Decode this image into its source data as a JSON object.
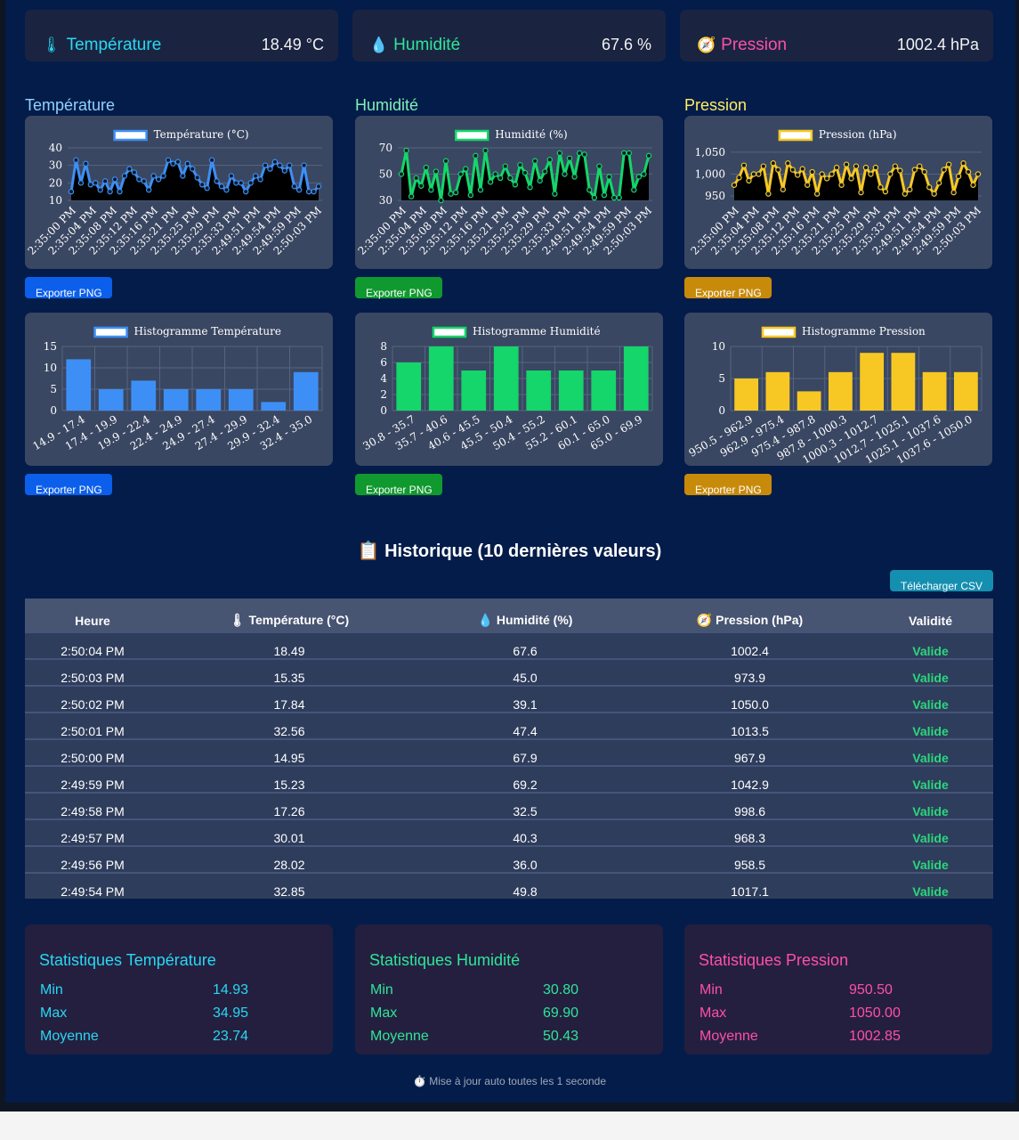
{
  "gauges": [
    {
      "icon": "🌡",
      "label": "Température",
      "value": "18.49 °C",
      "color": "#29d8f2"
    },
    {
      "icon": "💧",
      "label": "Humidité",
      "value": "67.6 %",
      "color": "#2fe59a"
    },
    {
      "icon": "🧭",
      "label": "Pression",
      "value": "1002.4 hPa",
      "color": "#ff4fa8"
    }
  ],
  "sections": {
    "temperature": {
      "title": "Température",
      "color": "#8fd2ff"
    },
    "humidity": {
      "title": "Humidité",
      "color": "#7ef2b7"
    },
    "pressure": {
      "title": "Pression",
      "color": "#ffee66"
    }
  },
  "export_label": "Exporter PNG",
  "colors": {
    "temp": "#3d8ff5",
    "hum": "#14d66a",
    "pres": "#f7c824",
    "btn_temp": "#0b5fea",
    "btn_hum": "#10992f",
    "btn_pres": "#c88a0a"
  },
  "chart_data": [
    {
      "type": "line",
      "legend": "Température (°C)",
      "x_labels": [
        "2:35:00 PM",
        "2:35:04 PM",
        "2:35:08 PM",
        "2:35:12 PM",
        "2:35:16 PM",
        "2:35:21 PM",
        "2:35:25 PM",
        "2:35:29 PM",
        "2:35:33 PM",
        "2:49:51 PM",
        "2:49:54 PM",
        "2:49:59 PM",
        "2:50:03 PM"
      ],
      "y_ticks": [
        10,
        20,
        30,
        40
      ],
      "ylim": [
        10,
        40
      ],
      "values": [
        15,
        33,
        20,
        31,
        19,
        20,
        16,
        21,
        15,
        22,
        15,
        24,
        28,
        26,
        22,
        21,
        16,
        24,
        22,
        24,
        33,
        31,
        32,
        24,
        31,
        28,
        23,
        19,
        17,
        33,
        21,
        18,
        16,
        24,
        20,
        20,
        15,
        20,
        24,
        22,
        30,
        28,
        32,
        30,
        27,
        30,
        18,
        16,
        30,
        15,
        15,
        18
      ]
    },
    {
      "type": "line",
      "legend": "Humidité (%)",
      "x_labels": [
        "2:35:00 PM",
        "2:35:04 PM",
        "2:35:08 PM",
        "2:35:12 PM",
        "2:35:16 PM",
        "2:35:21 PM",
        "2:35:25 PM",
        "2:35:29 PM",
        "2:35:33 PM",
        "2:49:51 PM",
        "2:49:54 PM",
        "2:49:59 PM",
        "2:50:03 PM"
      ],
      "y_ticks": [
        30,
        50,
        70
      ],
      "ylim": [
        30,
        70
      ],
      "values": [
        50,
        68,
        33,
        47,
        41,
        55,
        38,
        52,
        30,
        60,
        35,
        36,
        50,
        54,
        34,
        64,
        38,
        68,
        44,
        50,
        47,
        56,
        47,
        42,
        57,
        51,
        40,
        60,
        45,
        52,
        61,
        35,
        66,
        50,
        62,
        48,
        66,
        65,
        38,
        32,
        56,
        34,
        48,
        32,
        32,
        66,
        66,
        38,
        48,
        50,
        64
      ]
    },
    {
      "type": "line",
      "legend": "Pression (hPa)",
      "x_labels": [
        "2:35:00 PM",
        "2:35:04 PM",
        "2:35:08 PM",
        "2:35:12 PM",
        "2:35:16 PM",
        "2:35:21 PM",
        "2:35:25 PM",
        "2:35:29 PM",
        "2:35:33 PM",
        "2:49:51 PM",
        "2:49:54 PM",
        "2:49:59 PM",
        "2:50:03 PM"
      ],
      "y_ticks": [
        950,
        1000,
        1050
      ],
      "ylim": [
        940,
        1060
      ],
      "values": [
        975,
        992,
        1020,
        985,
        1000,
        1000,
        1018,
        955,
        1025,
        1010,
        965,
        1025,
        1010,
        998,
        1012,
        975,
        1005,
        955,
        1000,
        990,
        1000,
        1015,
        975,
        1022,
        990,
        1018,
        958,
        1015,
        1000,
        1015,
        970,
        960,
        1000,
        1018,
        1008,
        955,
        965,
        1010,
        1018,
        1005,
        970,
        955,
        980,
        1010,
        1022,
        958,
        995,
        1025,
        1005,
        975,
        1000
      ]
    },
    {
      "type": "bar",
      "legend": "Histogramme Température",
      "categories": [
        "14.9 - 17.4",
        "17.4 - 19.9",
        "19.9 - 22.4",
        "22.4 - 24.9",
        "24.9 - 27.4",
        "27.4 - 29.9",
        "29.9 - 32.4",
        "32.4 - 35.0"
      ],
      "y_ticks": [
        0,
        5,
        10,
        15
      ],
      "ylim": [
        0,
        15
      ],
      "values": [
        12,
        5,
        7,
        5,
        5,
        5,
        2,
        9
      ]
    },
    {
      "type": "bar",
      "legend": "Histogramme Humidité",
      "categories": [
        "30.8 - 35.7",
        "35.7 - 40.6",
        "40.6 - 45.5",
        "45.5 - 50.4",
        "50.4 - 55.2",
        "55.2 - 60.1",
        "60.1 - 65.0",
        "65.0 - 69.9"
      ],
      "y_ticks": [
        0,
        2,
        4,
        6,
        8
      ],
      "ylim": [
        0,
        8
      ],
      "values": [
        6,
        8,
        5,
        8,
        5,
        5,
        5,
        8
      ]
    },
    {
      "type": "bar",
      "legend": "Histogramme Pression",
      "categories": [
        "950.5 - 962.9",
        "962.9 - 975.4",
        "975.4 - 987.8",
        "987.8 - 1000.3",
        "1000.3 - 1012.7",
        "1012.7 - 1025.1",
        "1025.1 - 1037.6",
        "1037.6 - 1050.0"
      ],
      "y_ticks": [
        0,
        5,
        10
      ],
      "ylim": [
        0,
        10
      ],
      "values": [
        5,
        6,
        3,
        6,
        9,
        9,
        6,
        6
      ]
    }
  ],
  "history": {
    "title": "📋 Historique (10 dernières valeurs)",
    "csv_label": "Télécharger CSV",
    "headers": [
      "Heure",
      "🌡 Température (°C)",
      "💧 Humidité (%)",
      "🧭 Pression (hPa)",
      "Validité"
    ],
    "rows": [
      [
        "2:50:04 PM",
        "18.49",
        "67.6",
        "1002.4",
        "Valide"
      ],
      [
        "2:50:03 PM",
        "15.35",
        "45.0",
        "973.9",
        "Valide"
      ],
      [
        "2:50:02 PM",
        "17.84",
        "39.1",
        "1050.0",
        "Valide"
      ],
      [
        "2:50:01 PM",
        "32.56",
        "47.4",
        "1013.5",
        "Valide"
      ],
      [
        "2:50:00 PM",
        "14.95",
        "67.9",
        "967.9",
        "Valide"
      ],
      [
        "2:49:59 PM",
        "15.23",
        "69.2",
        "1042.9",
        "Valide"
      ],
      [
        "2:49:58 PM",
        "17.26",
        "32.5",
        "998.6",
        "Valide"
      ],
      [
        "2:49:57 PM",
        "30.01",
        "40.3",
        "968.3",
        "Valide"
      ],
      [
        "2:49:56 PM",
        "28.02",
        "36.0",
        "958.5",
        "Valide"
      ],
      [
        "2:49:54 PM",
        "32.85",
        "49.8",
        "1017.1",
        "Valide"
      ]
    ]
  },
  "stats": [
    {
      "title": "Statistiques Température",
      "color": "#29d8f2",
      "rows": [
        [
          "Min",
          "14.93"
        ],
        [
          "Max",
          "34.95"
        ],
        [
          "Moyenne",
          "23.74"
        ]
      ]
    },
    {
      "title": "Statistiques Humidité",
      "color": "#2fe59a",
      "rows": [
        [
          "Min",
          "30.80"
        ],
        [
          "Max",
          "69.90"
        ],
        [
          "Moyenne",
          "50.43"
        ]
      ]
    },
    {
      "title": "Statistiques Pression",
      "color": "#ff4fa8",
      "rows": [
        [
          "Min",
          "950.50"
        ],
        [
          "Max",
          "1050.00"
        ],
        [
          "Moyenne",
          "1002.85"
        ]
      ]
    }
  ],
  "footer": "⏱️ Mise à jour auto toutes les 1 seconde"
}
